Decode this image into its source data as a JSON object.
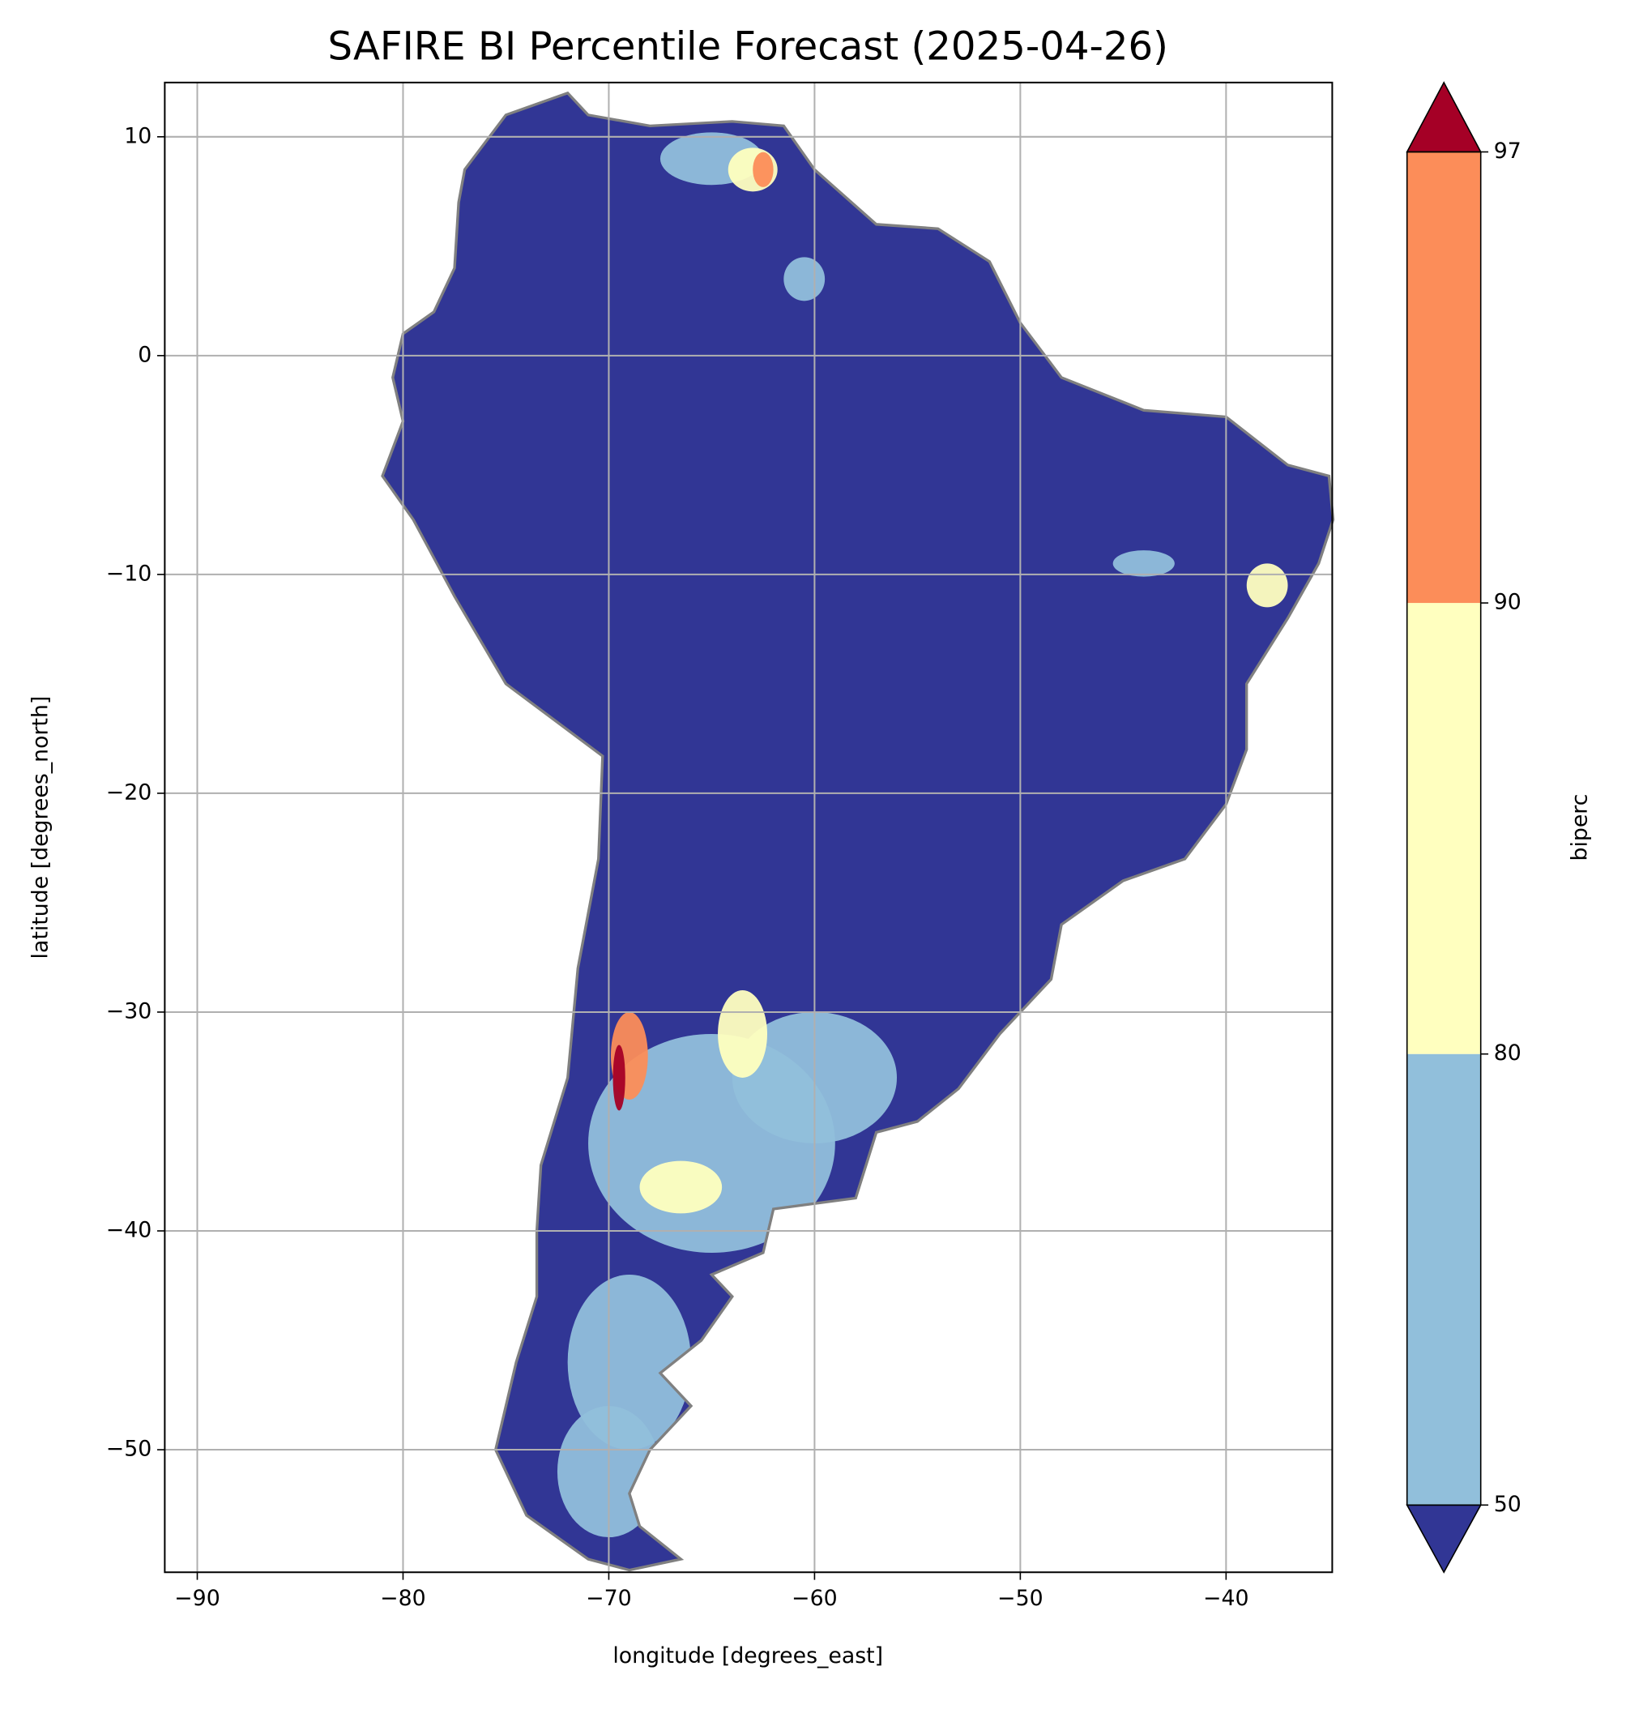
{
  "chart_data": {
    "type": "map",
    "title": "SAFIRE BI Percentile Forecast (2025-04-26)",
    "xlabel": "longitude [degrees_east]",
    "ylabel": "latitude [degrees_north]",
    "xlim": [
      -91.58,
      -34.84
    ],
    "ylim": [
      -55.6,
      12.48
    ],
    "xticks": [
      {
        "value": -90,
        "label": "−90"
      },
      {
        "value": -80,
        "label": "−80"
      },
      {
        "value": -70,
        "label": "−70"
      },
      {
        "value": -60,
        "label": "−60"
      },
      {
        "value": -50,
        "label": "−50"
      },
      {
        "value": -40,
        "label": "−40"
      }
    ],
    "yticks": [
      10,
      0,
      {
        "value": -10,
        "label": "−10"
      },
      {
        "value": -20,
        "label": "−20"
      },
      {
        "value": -30,
        "label": "−30"
      },
      {
        "value": -40,
        "label": "−40"
      },
      {
        "value": -50,
        "label": "−50"
      }
    ],
    "grid": true,
    "colorbar": {
      "label": "biperc",
      "ticks": [
        50,
        80,
        90,
        97
      ],
      "colors": [
        "#313695",
        "#91bfdb",
        "#ffffbf",
        "#fc8d59",
        "#a50026"
      ],
      "extend": "both"
    }
  }
}
